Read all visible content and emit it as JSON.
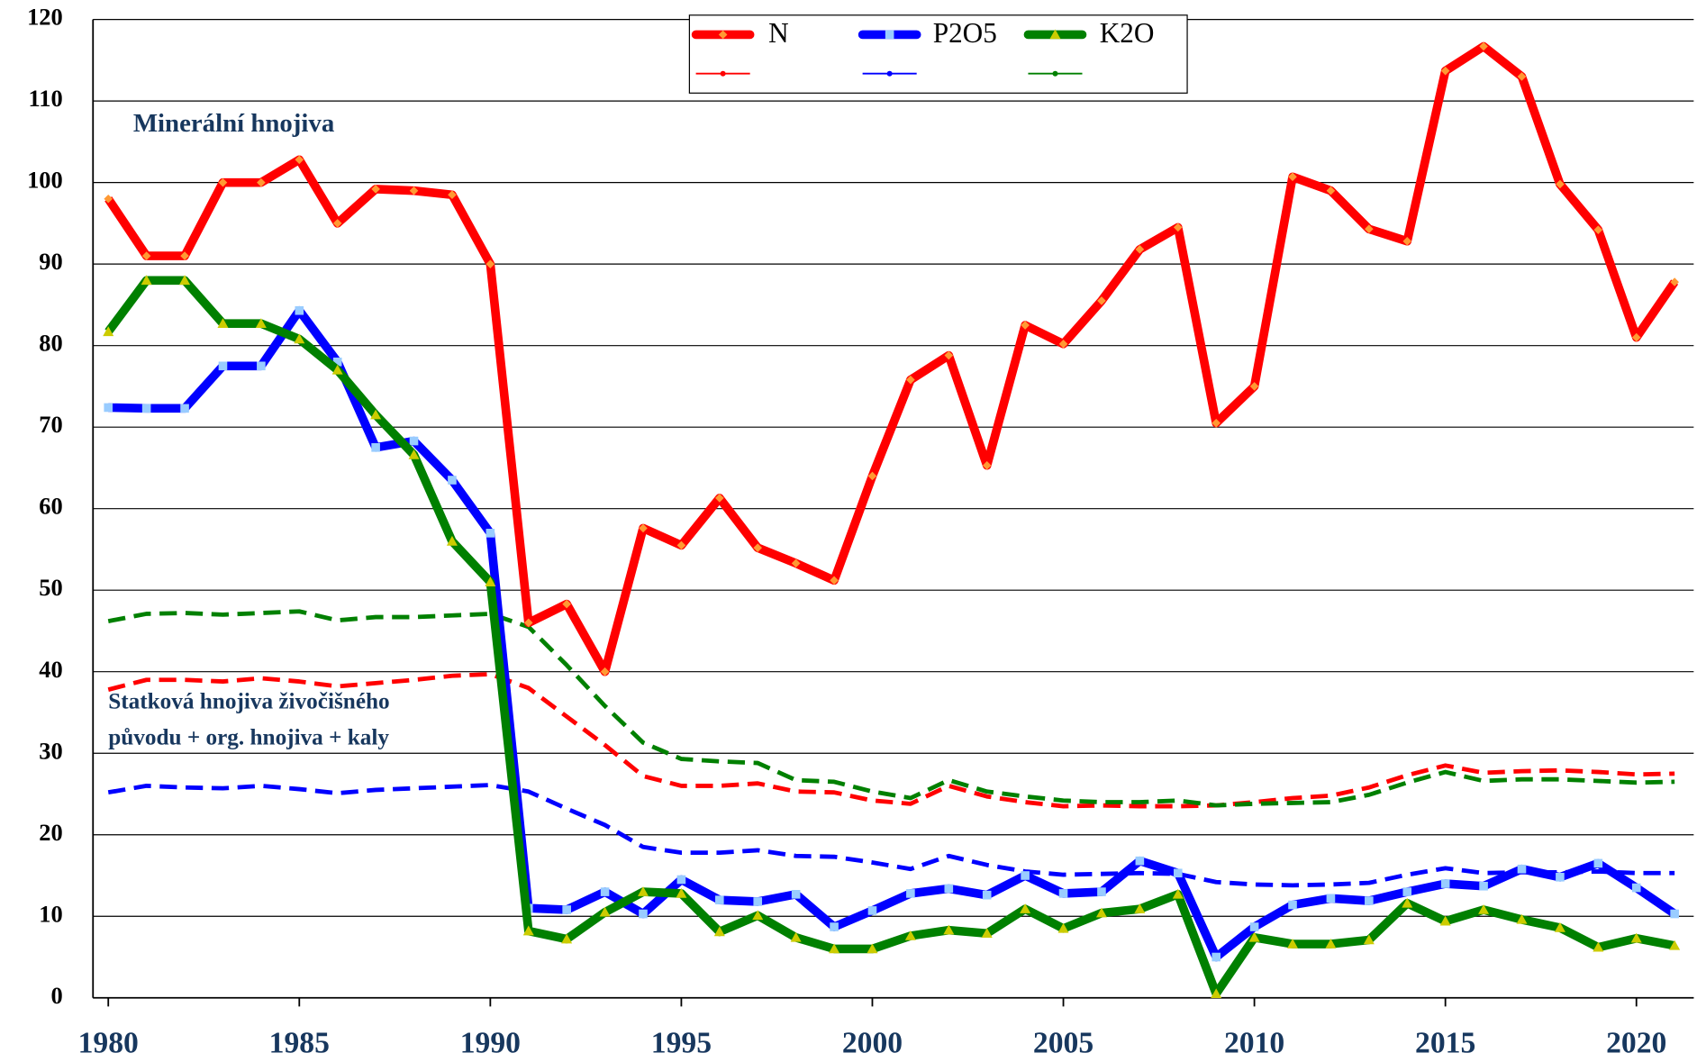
{
  "chart_data": {
    "type": "line",
    "annotations": [
      "Minerální hnojiva",
      "Statková hnojiva živočišného",
      "původu + org. hnojiva + kaly"
    ],
    "x": [
      1980,
      1981,
      1982,
      1983,
      1984,
      1985,
      1986,
      1987,
      1988,
      1989,
      1990,
      1991,
      1992,
      1993,
      1994,
      1995,
      1996,
      1997,
      1998,
      1999,
      2000,
      2001,
      2002,
      2003,
      2004,
      2005,
      2006,
      2007,
      2008,
      2009,
      2010,
      2011,
      2012,
      2013,
      2014,
      2015,
      2016,
      2017,
      2018,
      2019,
      2020,
      2021
    ],
    "xlim": [
      1979.6,
      2021.5
    ],
    "xticks": [
      1980,
      1985,
      1990,
      1995,
      2000,
      2005,
      2010,
      2015,
      2020
    ],
    "ylim": [
      0,
      120
    ],
    "yticks": [
      0,
      10,
      20,
      30,
      40,
      50,
      60,
      70,
      80,
      90,
      100,
      110,
      120
    ],
    "grid": true,
    "legend": "top",
    "series": [
      {
        "name": "N",
        "color": "#ff0000",
        "marker": "diamond",
        "marker_color": "#ff9933",
        "style": "solid",
        "values": [
          98,
          91,
          91,
          100,
          100,
          102.8,
          95,
          99.2,
          99,
          98.5,
          90,
          46,
          48.3,
          40,
          57.6,
          55.5,
          61.3,
          55.2,
          53.3,
          51.2,
          64,
          75.8,
          78.8,
          65.3,
          82.5,
          80.2,
          85.5,
          91.8,
          94.5,
          70.5,
          75,
          100.7,
          99,
          94.3,
          92.8,
          113.7,
          116.7,
          113,
          99.8,
          94.2,
          81,
          87.8
        ]
      },
      {
        "name": "P2O5",
        "color": "#0000ff",
        "marker": "square",
        "marker_color": "#99ccff",
        "style": "solid",
        "values": [
          72.4,
          72.3,
          72.3,
          77.5,
          77.5,
          84.3,
          78,
          67.5,
          68.3,
          63.5,
          57,
          11,
          10.8,
          13,
          10.3,
          14.5,
          12,
          11.8,
          12.7,
          8.7,
          10.7,
          12.8,
          13.4,
          12.6,
          15,
          12.8,
          13,
          16.8,
          15.3,
          5,
          8.7,
          11.4,
          12.2,
          11.9,
          13,
          14,
          13.7,
          15.8,
          14.8,
          16.5,
          13.5,
          10.3
        ]
      },
      {
        "name": "K2O",
        "color": "#008000",
        "marker": "triangle",
        "marker_color": "#cccc00",
        "style": "solid",
        "values": [
          81.7,
          88,
          88,
          82.7,
          82.7,
          80.8,
          77,
          71.5,
          66.6,
          56,
          51,
          8.2,
          7.2,
          10.5,
          13,
          12.8,
          8.1,
          10.1,
          7.4,
          6,
          6,
          7.6,
          8.3,
          7.9,
          10.9,
          8.5,
          10.4,
          10.9,
          12.7,
          0.5,
          7.4,
          6.6,
          6.6,
          7.1,
          11.6,
          9.4,
          10.8,
          9.6,
          8.6,
          6.2,
          7.3,
          6.4
        ]
      },
      {
        "color": "#ff0000",
        "style": "dashed",
        "values": [
          37.8,
          39,
          39,
          38.8,
          39.2,
          38.8,
          38.2,
          38.6,
          39,
          39.5,
          39.7,
          38,
          34.5,
          31,
          27.2,
          26,
          26,
          26.3,
          25.3,
          25.2,
          24.2,
          23.8,
          26,
          24.7,
          24,
          23.5,
          23.6,
          23.5,
          23.5,
          23.6,
          24,
          24.5,
          24.8,
          25.8,
          27.3,
          28.5,
          27.6,
          27.8,
          27.9,
          27.7,
          27.4,
          27.5
        ]
      },
      {
        "color": "#0000ff",
        "style": "dashed",
        "values": [
          25.2,
          26,
          25.8,
          25.7,
          26,
          25.6,
          25.1,
          25.5,
          25.7,
          25.9,
          26.1,
          25.3,
          23.2,
          21.2,
          18.5,
          17.8,
          17.8,
          18.1,
          17.4,
          17.3,
          16.6,
          15.8,
          17.4,
          16.3,
          15.5,
          15.1,
          15.2,
          15.3,
          15.2,
          14.2,
          13.9,
          13.8,
          13.9,
          14.1,
          15.1,
          15.9,
          15.3,
          15.4,
          15.4,
          15.5,
          15.3,
          15.3
        ]
      },
      {
        "color": "#008000",
        "style": "dashed",
        "values": [
          46.2,
          47.1,
          47.2,
          47,
          47.2,
          47.4,
          46.3,
          46.7,
          46.7,
          46.9,
          47.1,
          45.5,
          40.8,
          35.8,
          31.3,
          29.3,
          29,
          28.8,
          26.7,
          26.5,
          25.3,
          24.5,
          26.7,
          25.3,
          24.7,
          24.2,
          24,
          24,
          24.2,
          23.6,
          23.8,
          23.9,
          24,
          24.9,
          26.4,
          27.7,
          26.6,
          26.8,
          26.8,
          26.6,
          26.4,
          26.5
        ]
      }
    ]
  }
}
